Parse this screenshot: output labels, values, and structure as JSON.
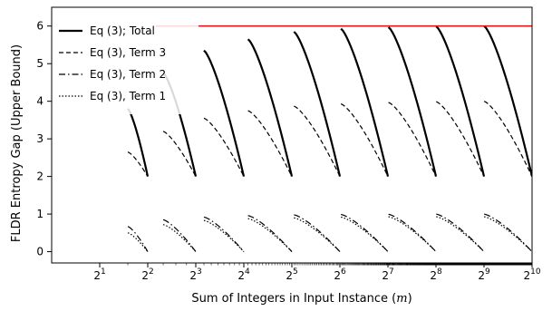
{
  "chart_data": {
    "type": "line",
    "xlabel": "Sum of Integers in Input Instance (m)",
    "xlabel_parts": {
      "text": "Sum of Integers in Input Instance (",
      "var": "m",
      "close": ")"
    },
    "ylabel": "FLDR Entropy Gap (Upper Bound)",
    "xscale": "log2",
    "xlim": [
      1,
      1024
    ],
    "ylim": [
      -0.3,
      6.5
    ],
    "grid": false,
    "legend_position": "top-left",
    "x_ticks": [
      {
        "value": 2,
        "base": "2",
        "exp": "1"
      },
      {
        "value": 4,
        "base": "2",
        "exp": "2"
      },
      {
        "value": 8,
        "base": "2",
        "exp": "3"
      },
      {
        "value": 16,
        "base": "2",
        "exp": "4"
      },
      {
        "value": 32,
        "base": "2",
        "exp": "5"
      },
      {
        "value": 64,
        "base": "2",
        "exp": "6"
      },
      {
        "value": 128,
        "base": "2",
        "exp": "7"
      },
      {
        "value": 256,
        "base": "2",
        "exp": "8"
      },
      {
        "value": 512,
        "base": "2",
        "exp": "9"
      },
      {
        "value": 1024,
        "base": "2",
        "exp": "10"
      }
    ],
    "y_ticks": [
      0,
      1,
      2,
      3,
      4,
      5,
      6
    ],
    "reference_line": {
      "y": 6,
      "x_start": 4.5,
      "x_end": 1024,
      "color": "#e41a1c"
    },
    "series": [
      {
        "name": "Eq (3); Total",
        "dash": "solid",
        "segments": [
          {
            "x": [
              3,
              4
            ],
            "y_start": 3.8,
            "y_end": 2.0
          },
          {
            "x": [
              5,
              8
            ],
            "y_start": 4.75,
            "y_end": 2.0
          },
          {
            "x": [
              9,
              16
            ],
            "y_start": 5.35,
            "y_end": 2.0
          },
          {
            "x": [
              17,
              32
            ],
            "y_start": 5.65,
            "y_end": 2.0
          },
          {
            "x": [
              33,
              64
            ],
            "y_start": 5.85,
            "y_end": 2.0
          },
          {
            "x": [
              65,
              128
            ],
            "y_start": 5.93,
            "y_end": 2.0
          },
          {
            "x": [
              129,
              256
            ],
            "y_start": 5.97,
            "y_end": 2.0
          },
          {
            "x": [
              257,
              512
            ],
            "y_start": 5.99,
            "y_end": 2.0
          },
          {
            "x": [
              513,
              1024
            ],
            "y_start": 6.0,
            "y_end": 2.0
          }
        ]
      },
      {
        "name": "Eq (3), Term 3",
        "dash": "dashed",
        "segments": [
          {
            "x": [
              3,
              4
            ],
            "y_start": 2.65,
            "y_end": 2.0
          },
          {
            "x": [
              5,
              8
            ],
            "y_start": 3.2,
            "y_end": 2.0
          },
          {
            "x": [
              9,
              16
            ],
            "y_start": 3.55,
            "y_end": 2.0
          },
          {
            "x": [
              17,
              32
            ],
            "y_start": 3.75,
            "y_end": 2.0
          },
          {
            "x": [
              33,
              64
            ],
            "y_start": 3.87,
            "y_end": 2.0
          },
          {
            "x": [
              65,
              128
            ],
            "y_start": 3.93,
            "y_end": 2.0
          },
          {
            "x": [
              129,
              256
            ],
            "y_start": 3.97,
            "y_end": 2.0
          },
          {
            "x": [
              257,
              512
            ],
            "y_start": 3.99,
            "y_end": 2.0
          },
          {
            "x": [
              513,
              1024
            ],
            "y_start": 4.0,
            "y_end": 2.0
          }
        ]
      },
      {
        "name": "Eq (3), Term 2",
        "dash": "dashdot",
        "segments": [
          {
            "x": [
              3,
              4
            ],
            "y_start": 0.67,
            "y_end": 0.0
          },
          {
            "x": [
              5,
              8
            ],
            "y_start": 0.85,
            "y_end": 0.0
          },
          {
            "x": [
              9,
              16
            ],
            "y_start": 0.92,
            "y_end": 0.0
          },
          {
            "x": [
              17,
              32
            ],
            "y_start": 0.96,
            "y_end": 0.0
          },
          {
            "x": [
              33,
              64
            ],
            "y_start": 0.98,
            "y_end": 0.0
          },
          {
            "x": [
              65,
              128
            ],
            "y_start": 0.99,
            "y_end": 0.0
          },
          {
            "x": [
              129,
              256
            ],
            "y_start": 0.995,
            "y_end": 0.0
          },
          {
            "x": [
              257,
              512
            ],
            "y_start": 1.0,
            "y_end": 0.0
          },
          {
            "x": [
              513,
              1024
            ],
            "y_start": 1.0,
            "y_end": 0.0
          }
        ]
      },
      {
        "name": "Eq (3), Term 1",
        "dash": "dotted",
        "segments": [
          {
            "x": [
              3,
              4
            ],
            "y_start": 0.5,
            "y_end": 0.0
          },
          {
            "x": [
              5,
              8
            ],
            "y_start": 0.72,
            "y_end": 0.0
          },
          {
            "x": [
              9,
              16
            ],
            "y_start": 0.83,
            "y_end": 0.0
          },
          {
            "x": [
              17,
              32
            ],
            "y_start": 0.88,
            "y_end": 0.0
          },
          {
            "x": [
              33,
              64
            ],
            "y_start": 0.9,
            "y_end": 0.0
          },
          {
            "x": [
              65,
              128
            ],
            "y_start": 0.92,
            "y_end": 0.0
          },
          {
            "x": [
              129,
              256
            ],
            "y_start": 0.93,
            "y_end": 0.0
          },
          {
            "x": [
              257,
              512
            ],
            "y_start": 0.93,
            "y_end": 0.0
          },
          {
            "x": [
              513,
              1024
            ],
            "y_start": 0.93,
            "y_end": 0.0
          }
        ]
      }
    ]
  }
}
